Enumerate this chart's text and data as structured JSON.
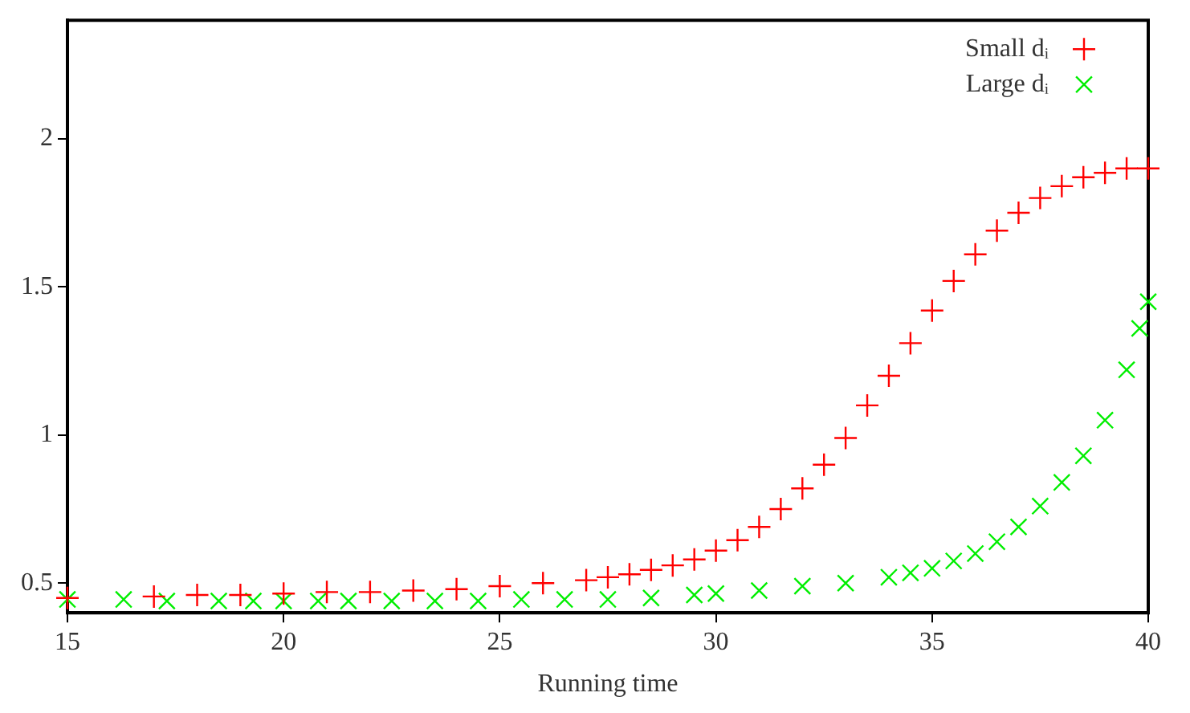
{
  "chart_data": {
    "type": "scatter",
    "xlabel": "Running time",
    "xlim": [
      15,
      40
    ],
    "xticks": [
      15,
      20,
      25,
      30,
      35,
      40
    ],
    "ylim": [
      0.4,
      2.4
    ],
    "yticks": [
      0.5,
      1,
      1.5,
      2
    ],
    "grid": false,
    "legend": "top right",
    "series": [
      {
        "name": "Small dᵢ",
        "color": "#ff0000",
        "marker": "cross",
        "x": [
          15,
          17,
          18,
          19,
          20,
          21,
          22,
          23,
          24,
          25,
          26,
          27,
          27.5,
          28,
          28.5,
          29,
          29.5,
          30,
          30.5,
          31,
          31.5,
          32,
          32.5,
          33,
          33.5,
          34,
          34.5,
          35,
          35.5,
          36,
          36.5,
          37,
          37.5,
          38,
          38.5,
          39,
          39.5,
          40
        ],
        "values": [
          0.45,
          0.455,
          0.46,
          0.46,
          0.465,
          0.47,
          0.47,
          0.475,
          0.48,
          0.49,
          0.5,
          0.51,
          0.52,
          0.53,
          0.545,
          0.56,
          0.58,
          0.61,
          0.645,
          0.69,
          0.75,
          0.82,
          0.9,
          0.99,
          1.1,
          1.2,
          1.31,
          1.42,
          1.52,
          1.61,
          1.69,
          1.75,
          1.8,
          1.84,
          1.87,
          1.885,
          1.9,
          1.9
        ]
      },
      {
        "name": "Large dᵢ",
        "color": "#00ee00",
        "marker": "x",
        "x": [
          15,
          16.3,
          17.3,
          18.5,
          19.3,
          20,
          20.8,
          21.5,
          22.5,
          23.5,
          24.5,
          25.5,
          26.5,
          27.5,
          28.5,
          29.5,
          30,
          31,
          32,
          33,
          34,
          34.5,
          35,
          35.5,
          36,
          36.5,
          37,
          37.5,
          38,
          38.5,
          39,
          39.5,
          39.8,
          40
        ],
        "values": [
          0.445,
          0.445,
          0.44,
          0.44,
          0.44,
          0.44,
          0.44,
          0.44,
          0.44,
          0.44,
          0.44,
          0.445,
          0.445,
          0.445,
          0.45,
          0.46,
          0.465,
          0.475,
          0.49,
          0.5,
          0.52,
          0.535,
          0.55,
          0.575,
          0.6,
          0.64,
          0.69,
          0.76,
          0.84,
          0.93,
          1.05,
          1.22,
          1.36,
          1.45
        ]
      }
    ]
  }
}
